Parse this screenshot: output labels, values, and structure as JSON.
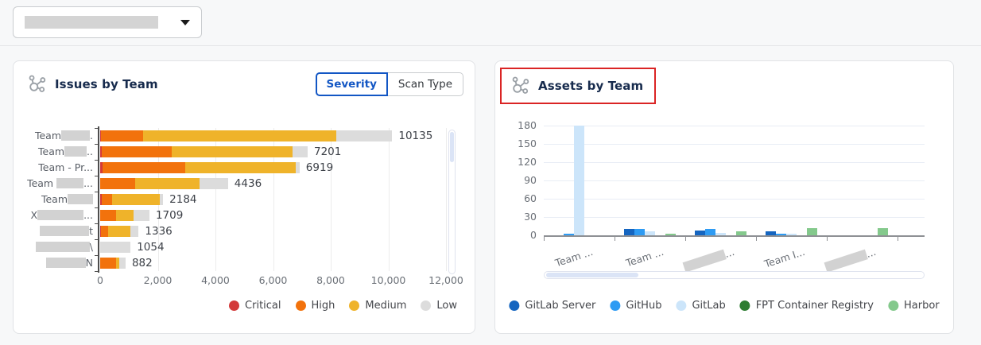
{
  "header": {
    "dropdown_redacted": true
  },
  "issues_card": {
    "title": "Issues by Team",
    "toggle": {
      "options": [
        "Severity",
        "Scan Type"
      ],
      "active": "Severity"
    },
    "chart_data": {
      "type": "bar",
      "orientation": "horizontal",
      "stacked": true,
      "title": "Issues by Team",
      "xlim": [
        0,
        12000
      ],
      "xticks": [
        "0",
        "2,000",
        "4,000",
        "6,000",
        "8,000",
        "10,000",
        "12,000"
      ],
      "grid": true,
      "legend_position": "bottom-right",
      "categories": [
        {
          "pre": "Team",
          "redact_w": 36,
          "post": "."
        },
        {
          "pre": "Team",
          "redact_w": 28,
          "post": ".."
        },
        {
          "pre": "Team - Pr...",
          "redact_w": 0,
          "post": ""
        },
        {
          "pre": "Team ",
          "redact_w": 34,
          "post": "..."
        },
        {
          "pre": "Team",
          "redact_w": 32,
          "post": ""
        },
        {
          "pre": "X",
          "redact_w": 58,
          "post": "..."
        },
        {
          "pre": "",
          "redact_w": 62,
          "post": "t"
        },
        {
          "pre": "",
          "redact_w": 68,
          "post": "\\"
        },
        {
          "pre": "",
          "redact_w": 50,
          "post": "N"
        }
      ],
      "series": [
        {
          "name": "Critical",
          "color": "#d33a3a",
          "values": [
            35,
            50,
            90,
            0,
            60,
            0,
            30,
            0,
            0
          ]
        },
        {
          "name": "High",
          "color": "#f2720c",
          "values": [
            1465,
            2430,
            2860,
            1200,
            360,
            550,
            245,
            0,
            550
          ]
        },
        {
          "name": "Medium",
          "color": "#efb32a",
          "values": [
            6700,
            4190,
            3850,
            2250,
            1660,
            620,
            775,
            0,
            100
          ]
        },
        {
          "name": "Low",
          "color": "#dcdcdc",
          "values": [
            1935,
            531,
            119,
            986,
            104,
            539,
            286,
            1054,
            232
          ]
        }
      ],
      "totals": [
        10135,
        7201,
        6919,
        4436,
        2184,
        1709,
        1336,
        1054,
        882
      ]
    }
  },
  "assets_card": {
    "title": "Assets by Team",
    "highlighted": true,
    "chart_data": {
      "type": "bar",
      "orientation": "vertical",
      "grouped": true,
      "title": "Assets by Team",
      "ylim": [
        0,
        180
      ],
      "yticks": [
        "0",
        "30",
        "60",
        "90",
        "120",
        "150",
        "180"
      ],
      "grid": true,
      "legend_position": "bottom-center",
      "categories": [
        {
          "pre": "Team ...",
          "redact_w": 0,
          "post": ""
        },
        {
          "pre": "Team ...",
          "redact_w": 0,
          "post": ""
        },
        {
          "pre": "",
          "redact_w": 54,
          "post": "..."
        },
        {
          "pre": "Team I...",
          "redact_w": 0,
          "post": ""
        },
        {
          "pre": "",
          "redact_w": 54,
          "post": "..."
        }
      ],
      "series": [
        {
          "name": "GitLab Server",
          "color": "#1565c0",
          "values": [
            0,
            11,
            8,
            7,
            0
          ]
        },
        {
          "name": "GitHub",
          "color": "#2e9bf3",
          "values": [
            2,
            11,
            10,
            1,
            0
          ]
        },
        {
          "name": "GitLab",
          "color": "#cce5fa",
          "values": [
            180,
            6,
            4,
            3,
            0
          ]
        },
        {
          "name": "FPT Container Registry",
          "color": "#2e7d32",
          "values": [
            0,
            0,
            0,
            0,
            0
          ]
        },
        {
          "name": "Harbor",
          "color": "#84c98c",
          "values": [
            0,
            2,
            6,
            12,
            12
          ]
        }
      ]
    }
  }
}
